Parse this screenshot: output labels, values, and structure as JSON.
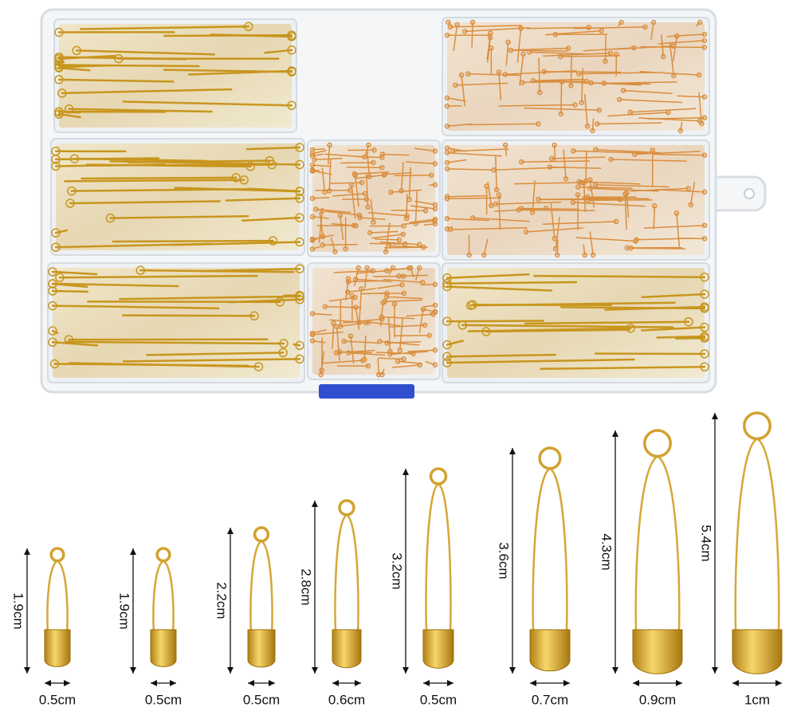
{
  "pins": [
    {
      "height": "1.9cm",
      "width": "0.5cm"
    },
    {
      "height": "1.9cm",
      "width": "0.5cm"
    },
    {
      "height": "2.2cm",
      "width": "0.5cm"
    },
    {
      "height": "2.8cm",
      "width": "0.6cm"
    },
    {
      "height": "3.2cm",
      "width": "0.5cm"
    },
    {
      "height": "3.6cm",
      "width": "0.7cm"
    },
    {
      "height": "4.3cm",
      "width": "0.9cm"
    },
    {
      "height": "5.4cm",
      "width": "1cm"
    }
  ]
}
